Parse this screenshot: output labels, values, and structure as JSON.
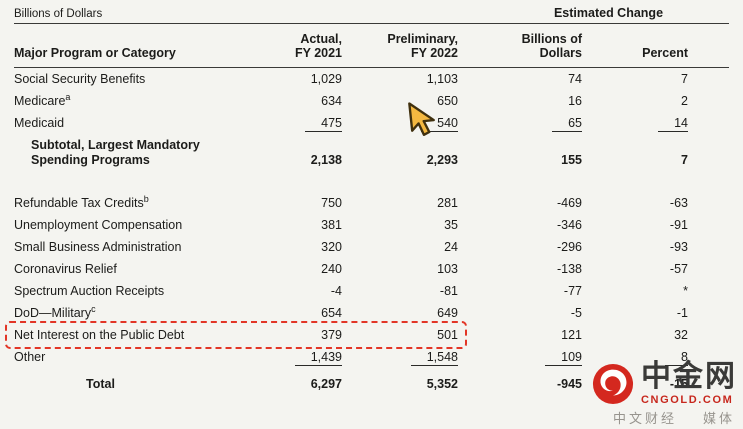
{
  "table": {
    "units_label": "Billions of Dollars",
    "estimated_change": "Estimated Change",
    "columns": {
      "category": "Major Program or Category",
      "fy2021": [
        "Actual,",
        "FY 2021"
      ],
      "fy2022": [
        "Preliminary,",
        "FY 2022"
      ],
      "change_dollars": [
        "Billions of",
        "Dollars"
      ],
      "percent": "Percent"
    },
    "rows": [
      {
        "label": "Social Security Benefits",
        "values": [
          "1,029",
          "1,103",
          "74",
          "7"
        ],
        "flags": []
      },
      {
        "label": "Medicare",
        "sup": "a",
        "values": [
          "634",
          "650",
          "16",
          "2"
        ],
        "flags": []
      },
      {
        "label": "Medicaid",
        "values": [
          "475",
          "540",
          "65",
          "14"
        ],
        "flags": [
          "underline"
        ]
      },
      {
        "label": "Subtotal, Largest Mandatory",
        "label2": "Spending Programs",
        "values": [
          "2,138",
          "2,293",
          "155",
          "7"
        ],
        "flags": [
          "subtotal"
        ]
      },
      {
        "label": "Refundable Tax Credits",
        "sup": "b",
        "values": [
          "750",
          "281",
          "-469",
          "-63"
        ],
        "flags": [
          "gap"
        ]
      },
      {
        "label": "Unemployment Compensation",
        "values": [
          "381",
          "35",
          "-346",
          "-91"
        ],
        "flags": []
      },
      {
        "label": "Small Business Administration",
        "values": [
          "320",
          "24",
          "-296",
          "-93"
        ],
        "flags": []
      },
      {
        "label": "Coronavirus Relief",
        "values": [
          "240",
          "103",
          "-138",
          "-57"
        ],
        "flags": []
      },
      {
        "label": "Spectrum Auction Receipts",
        "values": [
          "-4",
          "-81",
          "-77",
          "*"
        ],
        "flags": []
      },
      {
        "label": "DoD—Military",
        "sup": "c",
        "values": [
          "654",
          "649",
          "-5",
          "-1"
        ],
        "flags": []
      },
      {
        "label": "Net Interest on the Public Debt",
        "values": [
          "379",
          "501",
          "121",
          "32"
        ],
        "flags": [
          "highlight"
        ]
      },
      {
        "label": "Other",
        "values": [
          "1,439",
          "1,548",
          "109",
          "8"
        ],
        "flags": [
          "underline"
        ]
      },
      {
        "label": "Total",
        "values": [
          "6,297",
          "5,352",
          "-945",
          "-15"
        ],
        "flags": [
          "total"
        ]
      }
    ]
  },
  "watermark": {
    "brand": "中金网",
    "domain": "CNGOLD.COM",
    "slogan_left": "中文财经",
    "slogan_right": "媒体"
  },
  "colors": {
    "highlight_border": "#e23526",
    "cursor_fill": "#f4b841",
    "logo_red": "#d4281f"
  }
}
